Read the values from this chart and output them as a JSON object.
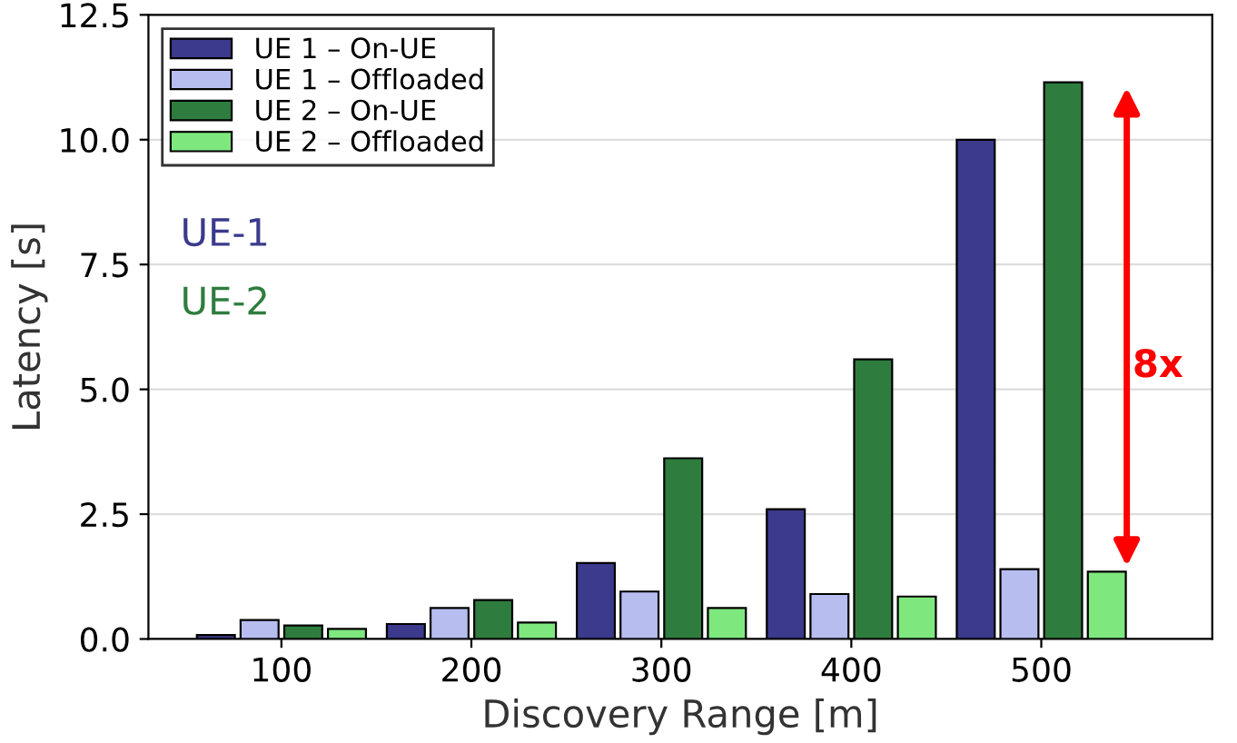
{
  "chart_data": {
    "type": "bar",
    "xlabel": "Discovery Range [m]",
    "ylabel": "Latency [s]",
    "categories": [
      "100",
      "200",
      "300",
      "400",
      "500"
    ],
    "series": [
      {
        "name": "UE 1 – On-UE",
        "color": "#3b3a8c",
        "values": [
          0.08,
          0.3,
          1.52,
          2.6,
          10.0
        ]
      },
      {
        "name": "UE 1 – Offloaded",
        "color": "#b8bdf0",
        "values": [
          0.38,
          0.62,
          0.95,
          0.9,
          1.4
        ]
      },
      {
        "name": "UE 2 – On-UE",
        "color": "#2e7d3e",
        "values": [
          0.27,
          0.78,
          3.62,
          5.6,
          11.15
        ]
      },
      {
        "name": "UE 2 – Offloaded",
        "color": "#7ee87e",
        "values": [
          0.2,
          0.33,
          0.62,
          0.85,
          1.35
        ]
      }
    ],
    "ylim": [
      0,
      12.5
    ],
    "yticks": [
      {
        "value": 0,
        "label": "0.0"
      },
      {
        "value": 2.5,
        "label": "2.5"
      },
      {
        "value": 5,
        "label": "5.0"
      },
      {
        "value": 7.5,
        "label": "7.5"
      },
      {
        "value": 10,
        "label": "10.0"
      },
      {
        "value": 12.5,
        "label": "12.5"
      }
    ],
    "grid": "y",
    "legend": "top left",
    "annotations": [
      "UE-1",
      "UE-2",
      "8x"
    ]
  }
}
